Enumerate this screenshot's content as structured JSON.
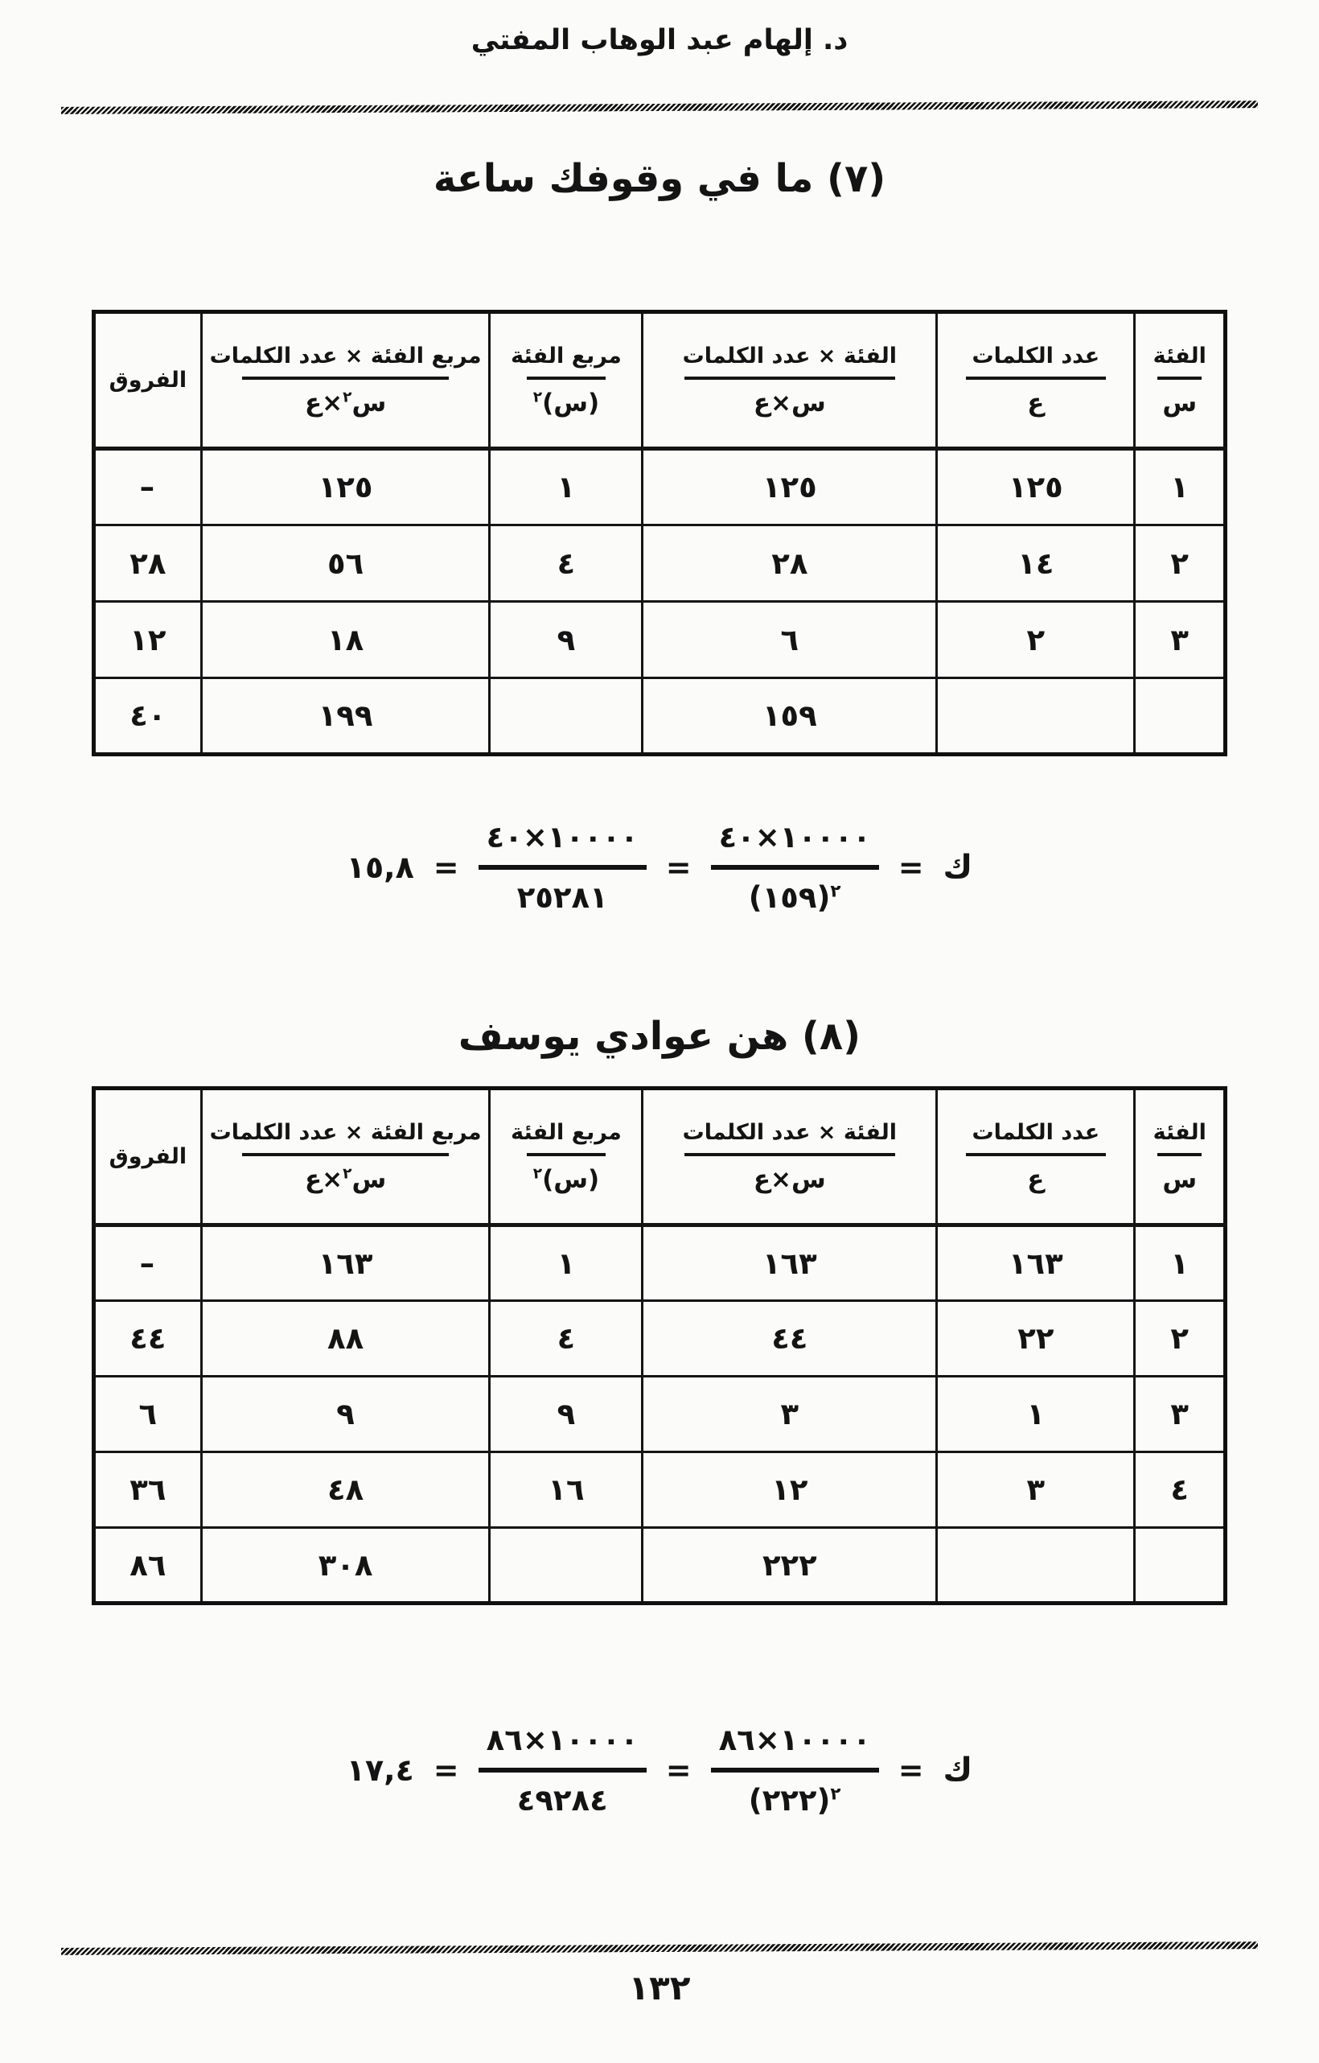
{
  "page": {
    "header": "د. إلهام عبد الوهاب المفتي",
    "page_number": "١٣٢"
  },
  "columns": [
    {
      "label": "الفئة",
      "sym_pre": "س",
      "sym_sup": "",
      "sym_post": ""
    },
    {
      "label": "عدد الكلمات",
      "sym_pre": "ع",
      "sym_sup": "",
      "sym_post": ""
    },
    {
      "label": "الفئة × عدد الكلمات",
      "sym_pre": "س×ع",
      "sym_sup": "",
      "sym_post": ""
    },
    {
      "label": "مربع الفئة",
      "sym_pre": "(س)",
      "sym_sup": "٢",
      "sym_post": ""
    },
    {
      "label": "مربع الفئة × عدد الكلمات",
      "sym_pre": "س",
      "sym_sup": "٢",
      "sym_post": "×ع"
    },
    {
      "label": "الفروق",
      "sym_pre": "",
      "sym_sup": "",
      "sym_post": ""
    }
  ],
  "section1": {
    "title": "(٧) ما في وقوفك ساعة",
    "rows": [
      [
        "١",
        "١٢٥",
        "١٢٥",
        "١",
        "١٢٥",
        "–"
      ],
      [
        "٢",
        "١٤",
        "٢٨",
        "٤",
        "٥٦",
        "٢٨"
      ],
      [
        "٣",
        "٢",
        "٦",
        "٩",
        "١٨",
        "١٢"
      ],
      [
        "",
        "",
        "١٥٩",
        "",
        "١٩٩",
        "٤٠"
      ]
    ],
    "formula": {
      "kaf": "ك",
      "equals": "=",
      "numerator": "١٠٠٠٠×٤٠",
      "den_base": "(١٥٩)",
      "den_exp": "٢",
      "den_value": "٢٥٢٨١",
      "result": "١٥,٨"
    }
  },
  "section2": {
    "title": "(٨) هن عوادي يوسف",
    "rows": [
      [
        "١",
        "١٦٣",
        "١٦٣",
        "١",
        "١٦٣",
        "–"
      ],
      [
        "٢",
        "٢٢",
        "٤٤",
        "٤",
        "٨٨",
        "٤٤"
      ],
      [
        "٣",
        "١",
        "٣",
        "٩",
        "٩",
        "٦"
      ],
      [
        "٤",
        "٣",
        "١٢",
        "١٦",
        "٤٨",
        "٣٦"
      ],
      [
        "",
        "",
        "٢٢٢",
        "",
        "٣٠٨",
        "٨٦"
      ]
    ],
    "formula": {
      "kaf": "ك",
      "equals": "=",
      "numerator": "١٠٠٠٠×٨٦",
      "den_base": "(٢٢٢)",
      "den_exp": "٢",
      "den_value": "٤٩٢٨٤",
      "result": "١٧,٤"
    }
  }
}
